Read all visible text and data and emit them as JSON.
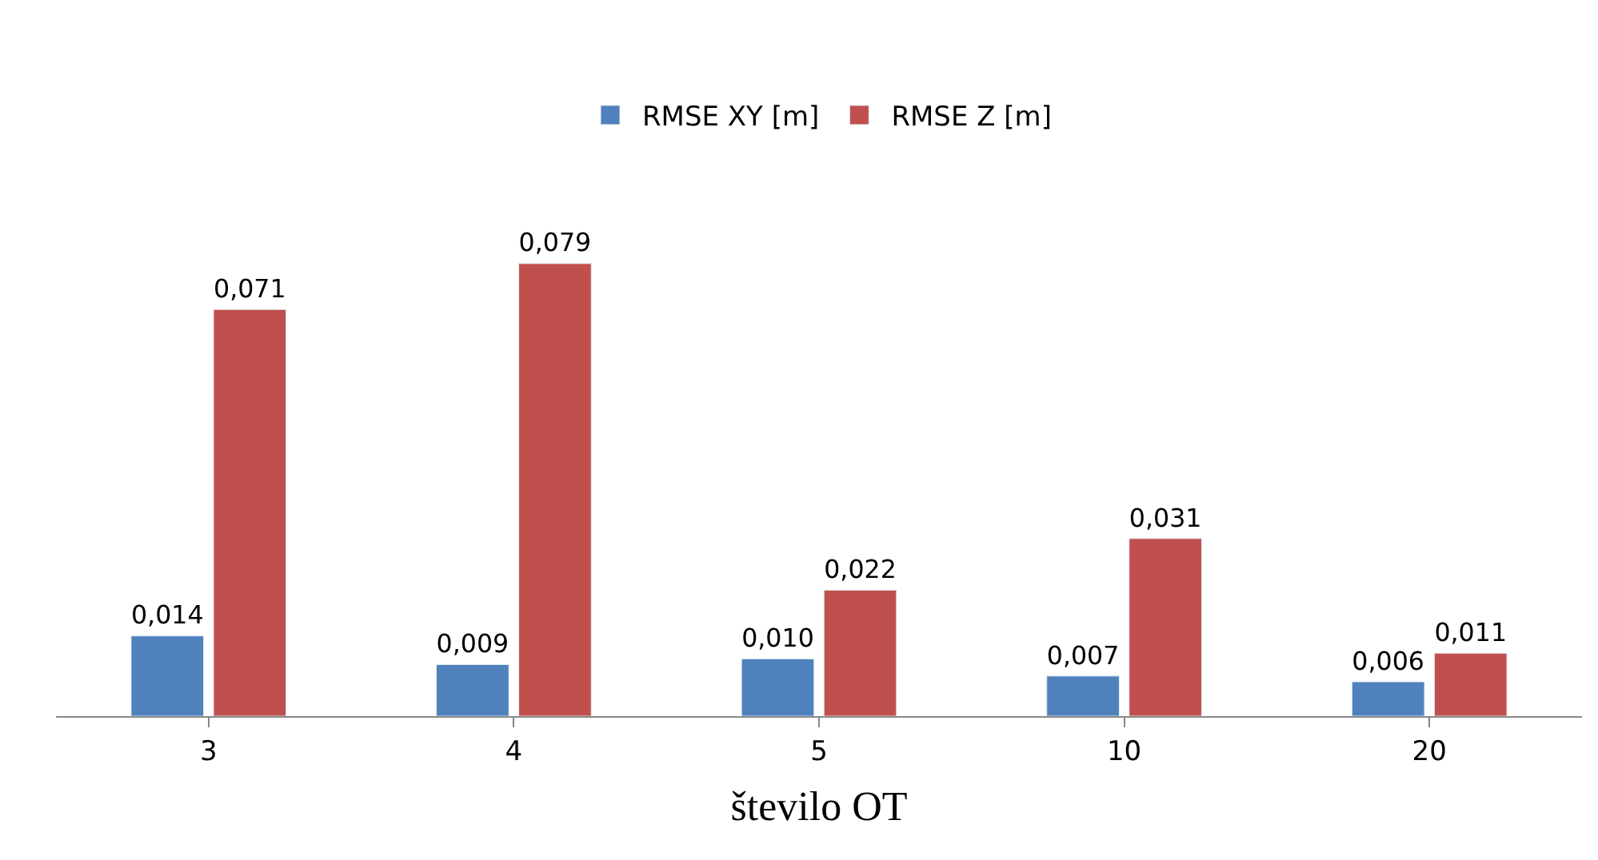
{
  "chart_data": {
    "type": "bar",
    "xlabel": "število OT",
    "categories": [
      "3",
      "4",
      "5",
      "10",
      "20"
    ],
    "series": [
      {
        "name": "RMSE XY [m]",
        "color": "#4f81bd",
        "values": [
          0.014,
          0.009,
          0.01,
          0.007,
          0.006
        ],
        "value_labels": [
          "0,014",
          "0,009",
          "0,010",
          "0,007",
          "0,006"
        ]
      },
      {
        "name": "RMSE Z [m]",
        "color": "#c0504d",
        "values": [
          0.071,
          0.079,
          0.022,
          0.031,
          0.011
        ],
        "value_labels": [
          "0,071",
          "0,079",
          "0,022",
          "0,031",
          "0,011"
        ]
      }
    ],
    "legend": "top"
  }
}
